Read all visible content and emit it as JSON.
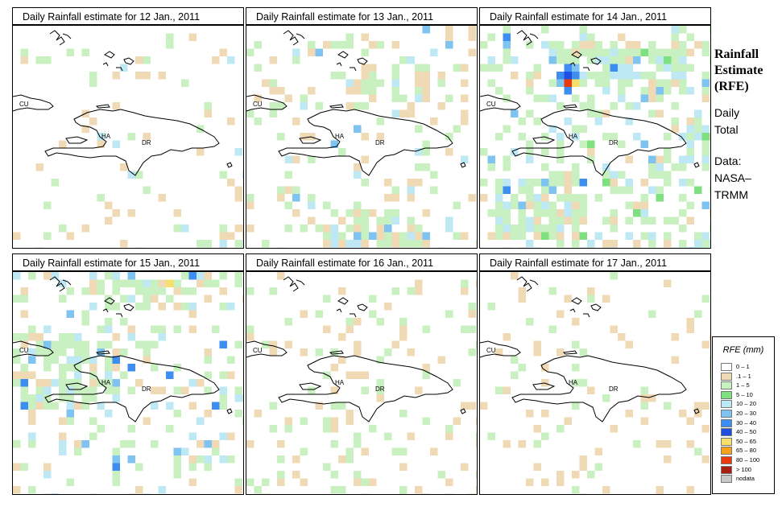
{
  "panels": [
    {
      "title": "Daily Rainfall estimate for  12 Jan., 2011",
      "labels": {
        "cu": "CU",
        "ha": "HA",
        "dr": "DR"
      }
    },
    {
      "title": "Daily Rainfall estimate for  13 Jan., 2011",
      "labels": {
        "cu": "CU",
        "ha": "HA",
        "dr": "DR"
      }
    },
    {
      "title": "Daily Rainfall estimate for  14 Jan., 2011",
      "labels": {
        "cu": "CU",
        "ha": "HA",
        "dr": "DR"
      }
    },
    {
      "title": "Daily Rainfall estimate for  15 Jan., 2011",
      "labels": {
        "cu": "CU",
        "ha": "HA",
        "dr": "DR"
      }
    },
    {
      "title": "Daily Rainfall estimate for  16 Jan., 2011",
      "labels": {
        "cu": "CU",
        "ha": "HA",
        "dr": "DR"
      }
    },
    {
      "title": "Daily Rainfall estimate for  17 Jan., 2011",
      "labels": {
        "cu": "CU",
        "ha": "HA",
        "dr": "DR"
      }
    }
  ],
  "side": {
    "title_line1": "Rainfall",
    "title_line2": "Estimate",
    "title_line3": "(RFE)",
    "daily_line1": "Daily",
    "daily_line2": "Total",
    "data_line1": "Data:",
    "data_line2": "NASA–",
    "data_line3": "TRMM"
  },
  "legend": {
    "title": "RFE (mm)",
    "items": [
      {
        "label": "0 – 1",
        "color": "#ffffff"
      },
      {
        "label": ".1 – 1",
        "color": "#f0d9b5"
      },
      {
        "label": "1 – 5",
        "color": "#c8f0c0"
      },
      {
        "label": "5 – 10",
        "color": "#7fe07f"
      },
      {
        "label": "10 – 20",
        "color": "#bfe8f5"
      },
      {
        "label": "20 – 30",
        "color": "#7fc3f0"
      },
      {
        "label": "30 – 40",
        "color": "#3d8ef0"
      },
      {
        "label": "40 – 50",
        "color": "#1f4fe0"
      },
      {
        "label": "50 – 65",
        "color": "#f7e06a"
      },
      {
        "label": "65 – 80",
        "color": "#f7a21a"
      },
      {
        "label": "80 – 100",
        "color": "#e83a0f"
      },
      {
        "label": "> 100",
        "color": "#a81e12"
      },
      {
        "label": "nodata",
        "color": "#c8c8c8"
      }
    ]
  }
}
